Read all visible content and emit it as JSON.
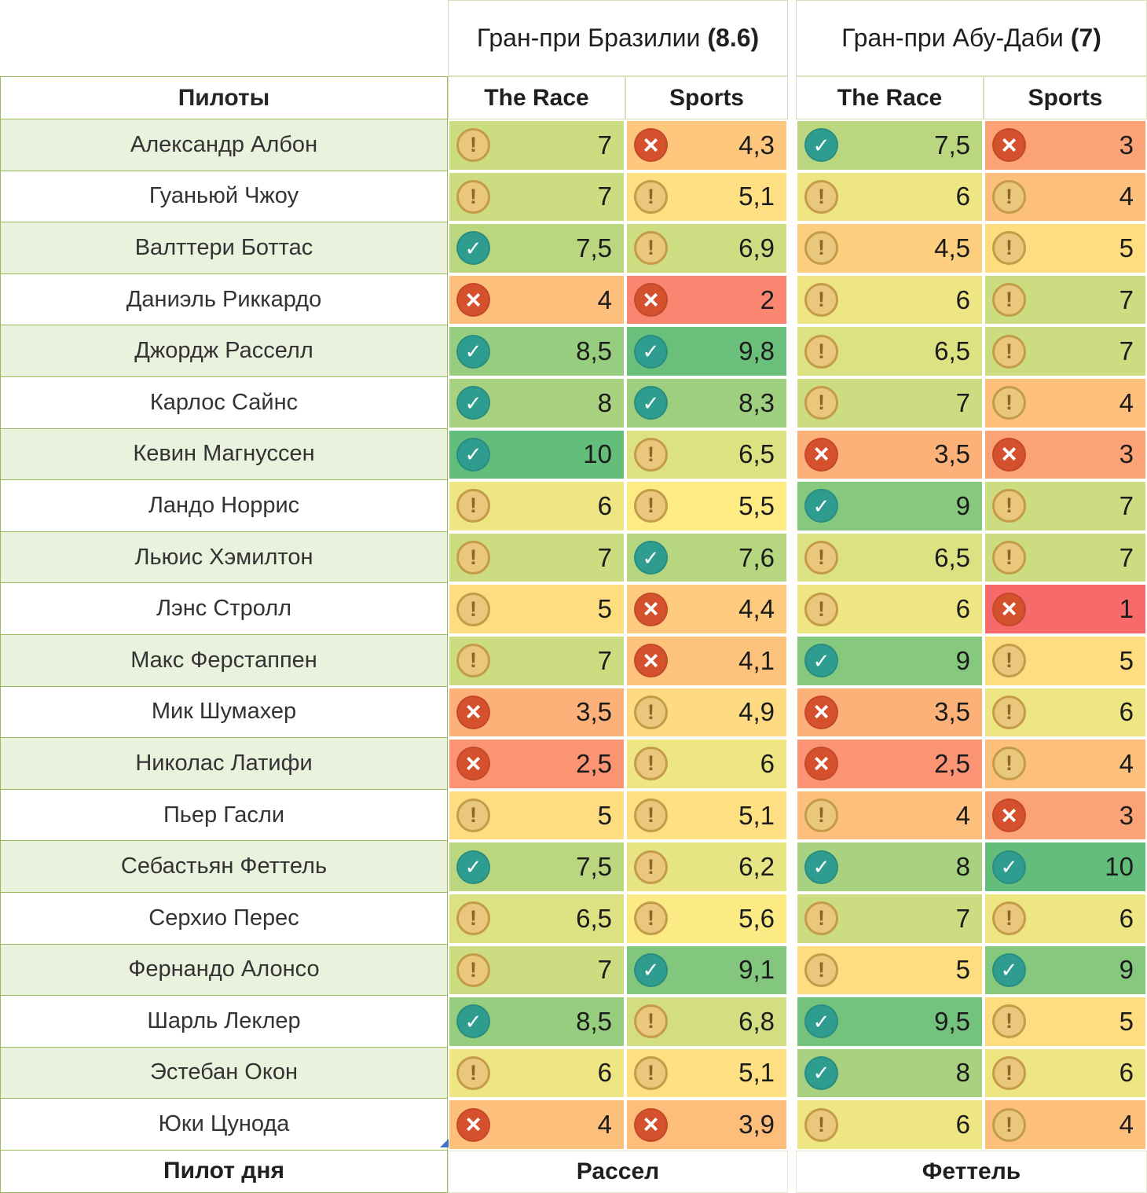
{
  "table": {
    "pilots_header": "Пилоты",
    "groups": [
      {
        "title": "Гран-при Бразилии",
        "avg": "(8.6)",
        "columns": [
          "The Race",
          "Sports"
        ]
      },
      {
        "title": "Гран-при Абу-Даби",
        "avg": "(7)",
        "columns": [
          "The Race",
          "Sports"
        ]
      }
    ],
    "rows": [
      {
        "name": "Александр Албон",
        "scores": [
          {
            "v": "7",
            "icon": "warn"
          },
          {
            "v": "4,3",
            "icon": "cross"
          },
          {
            "v": "7,5",
            "icon": "check"
          },
          {
            "v": "3",
            "icon": "cross"
          }
        ]
      },
      {
        "name": "Гуаньюй Чжоу",
        "scores": [
          {
            "v": "7",
            "icon": "warn"
          },
          {
            "v": "5,1",
            "icon": "warn"
          },
          {
            "v": "6",
            "icon": "warn"
          },
          {
            "v": "4",
            "icon": "warn"
          }
        ]
      },
      {
        "name": "Валттери Боттас",
        "scores": [
          {
            "v": "7,5",
            "icon": "check"
          },
          {
            "v": "6,9",
            "icon": "warn"
          },
          {
            "v": "4,5",
            "icon": "warn"
          },
          {
            "v": "5",
            "icon": "warn"
          }
        ]
      },
      {
        "name": "Даниэль Риккардо",
        "scores": [
          {
            "v": "4",
            "icon": "cross"
          },
          {
            "v": "2",
            "icon": "cross"
          },
          {
            "v": "6",
            "icon": "warn"
          },
          {
            "v": "7",
            "icon": "warn"
          }
        ]
      },
      {
        "name": "Джордж Расселл",
        "scores": [
          {
            "v": "8,5",
            "icon": "check"
          },
          {
            "v": "9,8",
            "icon": "check"
          },
          {
            "v": "6,5",
            "icon": "warn"
          },
          {
            "v": "7",
            "icon": "warn"
          }
        ]
      },
      {
        "name": "Карлос Сайнс",
        "scores": [
          {
            "v": "8",
            "icon": "check"
          },
          {
            "v": "8,3",
            "icon": "check"
          },
          {
            "v": "7",
            "icon": "warn"
          },
          {
            "v": "4",
            "icon": "warn"
          }
        ]
      },
      {
        "name": "Кевин Магнуссен",
        "scores": [
          {
            "v": "10",
            "icon": "check"
          },
          {
            "v": "6,5",
            "icon": "warn"
          },
          {
            "v": "3,5",
            "icon": "cross"
          },
          {
            "v": "3",
            "icon": "cross"
          }
        ]
      },
      {
        "name": "Ландо Норрис",
        "scores": [
          {
            "v": "6",
            "icon": "warn"
          },
          {
            "v": "5,5",
            "icon": "warn"
          },
          {
            "v": "9",
            "icon": "check"
          },
          {
            "v": "7",
            "icon": "warn"
          }
        ]
      },
      {
        "name": "Льюис Хэмилтон",
        "scores": [
          {
            "v": "7",
            "icon": "warn"
          },
          {
            "v": "7,6",
            "icon": "check"
          },
          {
            "v": "6,5",
            "icon": "warn"
          },
          {
            "v": "7",
            "icon": "warn"
          }
        ]
      },
      {
        "name": "Лэнс Стролл",
        "scores": [
          {
            "v": "5",
            "icon": "warn"
          },
          {
            "v": "4,4",
            "icon": "cross"
          },
          {
            "v": "6",
            "icon": "warn"
          },
          {
            "v": "1",
            "icon": "cross"
          }
        ]
      },
      {
        "name": "Макс Ферстаппен",
        "scores": [
          {
            "v": "7",
            "icon": "warn"
          },
          {
            "v": "4,1",
            "icon": "cross"
          },
          {
            "v": "9",
            "icon": "check"
          },
          {
            "v": "5",
            "icon": "warn"
          }
        ]
      },
      {
        "name": "Мик Шумахер",
        "scores": [
          {
            "v": "3,5",
            "icon": "cross"
          },
          {
            "v": "4,9",
            "icon": "warn"
          },
          {
            "v": "3,5",
            "icon": "cross"
          },
          {
            "v": "6",
            "icon": "warn"
          }
        ]
      },
      {
        "name": "Николас Латифи",
        "scores": [
          {
            "v": "2,5",
            "icon": "cross"
          },
          {
            "v": "6",
            "icon": "warn"
          },
          {
            "v": "2,5",
            "icon": "cross"
          },
          {
            "v": "4",
            "icon": "warn"
          }
        ]
      },
      {
        "name": "Пьер Гасли",
        "scores": [
          {
            "v": "5",
            "icon": "warn"
          },
          {
            "v": "5,1",
            "icon": "warn"
          },
          {
            "v": "4",
            "icon": "warn"
          },
          {
            "v": "3",
            "icon": "cross"
          }
        ]
      },
      {
        "name": "Себастьян Феттель",
        "scores": [
          {
            "v": "7,5",
            "icon": "check"
          },
          {
            "v": "6,2",
            "icon": "warn"
          },
          {
            "v": "8",
            "icon": "check"
          },
          {
            "v": "10",
            "icon": "check"
          }
        ]
      },
      {
        "name": "Серхио Перес",
        "scores": [
          {
            "v": "6,5",
            "icon": "warn"
          },
          {
            "v": "5,6",
            "icon": "warn"
          },
          {
            "v": "7",
            "icon": "warn"
          },
          {
            "v": "6",
            "icon": "warn"
          }
        ]
      },
      {
        "name": "Фернандо Алонсо",
        "scores": [
          {
            "v": "7",
            "icon": "warn"
          },
          {
            "v": "9,1",
            "icon": "check"
          },
          {
            "v": "5",
            "icon": "warn"
          },
          {
            "v": "9",
            "icon": "check"
          }
        ]
      },
      {
        "name": "Шарль Леклер",
        "scores": [
          {
            "v": "8,5",
            "icon": "check"
          },
          {
            "v": "6,8",
            "icon": "warn"
          },
          {
            "v": "9,5",
            "icon": "check"
          },
          {
            "v": "5",
            "icon": "warn"
          }
        ]
      },
      {
        "name": "Эстебан Окон",
        "scores": [
          {
            "v": "6",
            "icon": "warn"
          },
          {
            "v": "5,1",
            "icon": "warn"
          },
          {
            "v": "8",
            "icon": "check"
          },
          {
            "v": "6",
            "icon": "warn"
          }
        ]
      },
      {
        "name": "Юки Цунода",
        "scores": [
          {
            "v": "4",
            "icon": "cross"
          },
          {
            "v": "3,9",
            "icon": "cross"
          },
          {
            "v": "6",
            "icon": "warn"
          },
          {
            "v": "4",
            "icon": "warn"
          }
        ]
      }
    ],
    "footer": {
      "label": "Пилот дня",
      "values": [
        "Рассел",
        "Феттель"
      ]
    }
  },
  "colors": {
    "scale_min": "#F8696B",
    "scale_mid": "#FFEB84",
    "scale_max": "#63BE7B",
    "scale_domain": [
      1,
      5.5,
      10
    ],
    "icon_check": "#2E9D8F",
    "icon_cross": "#D5502C",
    "icon_warn_fill": "#E9C87E",
    "icon_warn_border": "#C49B48",
    "icon_warn_glyph": "#8A6A1C",
    "row_alt": "#EAF1DD",
    "border_green": "#9BBB59"
  }
}
